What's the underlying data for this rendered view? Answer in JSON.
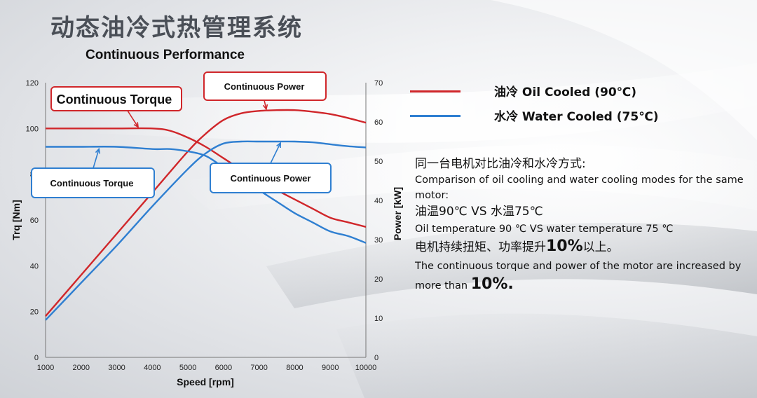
{
  "page": {
    "title": "动态油冷式热管理系统",
    "subtitle": "Continuous Performance"
  },
  "legend": [
    {
      "label": "油冷 Oil Cooled (90℃)",
      "color": "#d0262a"
    },
    {
      "label": "水冷 Water Cooled (75℃)",
      "color": "#2f7fd1"
    }
  ],
  "callouts": {
    "oil_torque": "Continuous Torque",
    "oil_power": "Continuous Power",
    "water_torque": "Continuous Torque",
    "water_power": "Continuous Power"
  },
  "description": {
    "line1": "同一台电机对比油冷和水冷方式:",
    "line2": "Comparison of oil cooling and water cooling modes for the same motor:",
    "line3": "油温90℃ VS 水温75℃",
    "line4": "Oil temperature 90 ℃ VS water temperature 75 ℃",
    "line5_prefix": "电机持续扭矩、功率提升",
    "line5_emph": "10%",
    "line5_suffix": "以上。",
    "line6_prefix": "The continuous torque and power of the motor are increased by more than ",
    "line6_emph": "10%."
  },
  "chart_data": {
    "type": "line",
    "xlabel": "Speed [rpm]",
    "ylabel": "Trq [Nm]",
    "y2label": "Power [kW]",
    "xlim": [
      1000,
      10000
    ],
    "ylim": [
      0,
      120
    ],
    "y2lim": [
      0,
      70
    ],
    "xticks": [
      1000,
      2000,
      3000,
      4000,
      5000,
      6000,
      7000,
      8000,
      9000,
      10000
    ],
    "yticks": [
      0,
      20,
      40,
      60,
      80,
      100,
      120
    ],
    "y2ticks": [
      0,
      10,
      20,
      30,
      40,
      50,
      60,
      70
    ],
    "grid": false,
    "series": [
      {
        "axis": "left",
        "color": "#d0262a",
        "x": [
          1000,
          2000,
          3000,
          4000,
          4500,
          5000,
          5500,
          6000,
          6500,
          7000,
          7500,
          8000,
          8500,
          9000,
          9500,
          10000
        ],
        "y": [
          100,
          100,
          100,
          100,
          99,
          96,
          92,
          87,
          82,
          77,
          73,
          69,
          65,
          61,
          59,
          57
        ]
      },
      {
        "axis": "right",
        "color": "#d0262a",
        "x": [
          1000,
          2000,
          3000,
          4000,
          5000,
          5500,
          6000,
          6500,
          7000,
          7500,
          8000,
          8500,
          9000,
          9500,
          10000
        ],
        "y": [
          10.5,
          21,
          31.5,
          42,
          52.5,
          57,
          60.5,
          62.2,
          62.8,
          63,
          63,
          62.6,
          62,
          61,
          59.8
        ]
      },
      {
        "axis": "left",
        "color": "#2f7fd1",
        "x": [
          1000,
          2000,
          3000,
          4000,
          4500,
          5000,
          5500,
          6000,
          6500,
          7000,
          7500,
          8000,
          8500,
          9000,
          9500,
          10000
        ],
        "y": [
          92,
          92,
          92,
          91,
          91,
          90,
          88,
          83,
          78,
          73,
          68,
          63,
          59,
          55,
          53,
          50
        ]
      },
      {
        "axis": "right",
        "color": "#2f7fd1",
        "x": [
          1000,
          2000,
          3000,
          4000,
          5000,
          5500,
          6000,
          6500,
          7000,
          7500,
          8000,
          8500,
          9000,
          9500,
          10000
        ],
        "y": [
          9.5,
          19,
          28.5,
          38.5,
          48,
          52,
          54.5,
          55,
          55,
          55,
          55,
          54.8,
          54.3,
          53.8,
          53.5
        ]
      }
    ]
  }
}
